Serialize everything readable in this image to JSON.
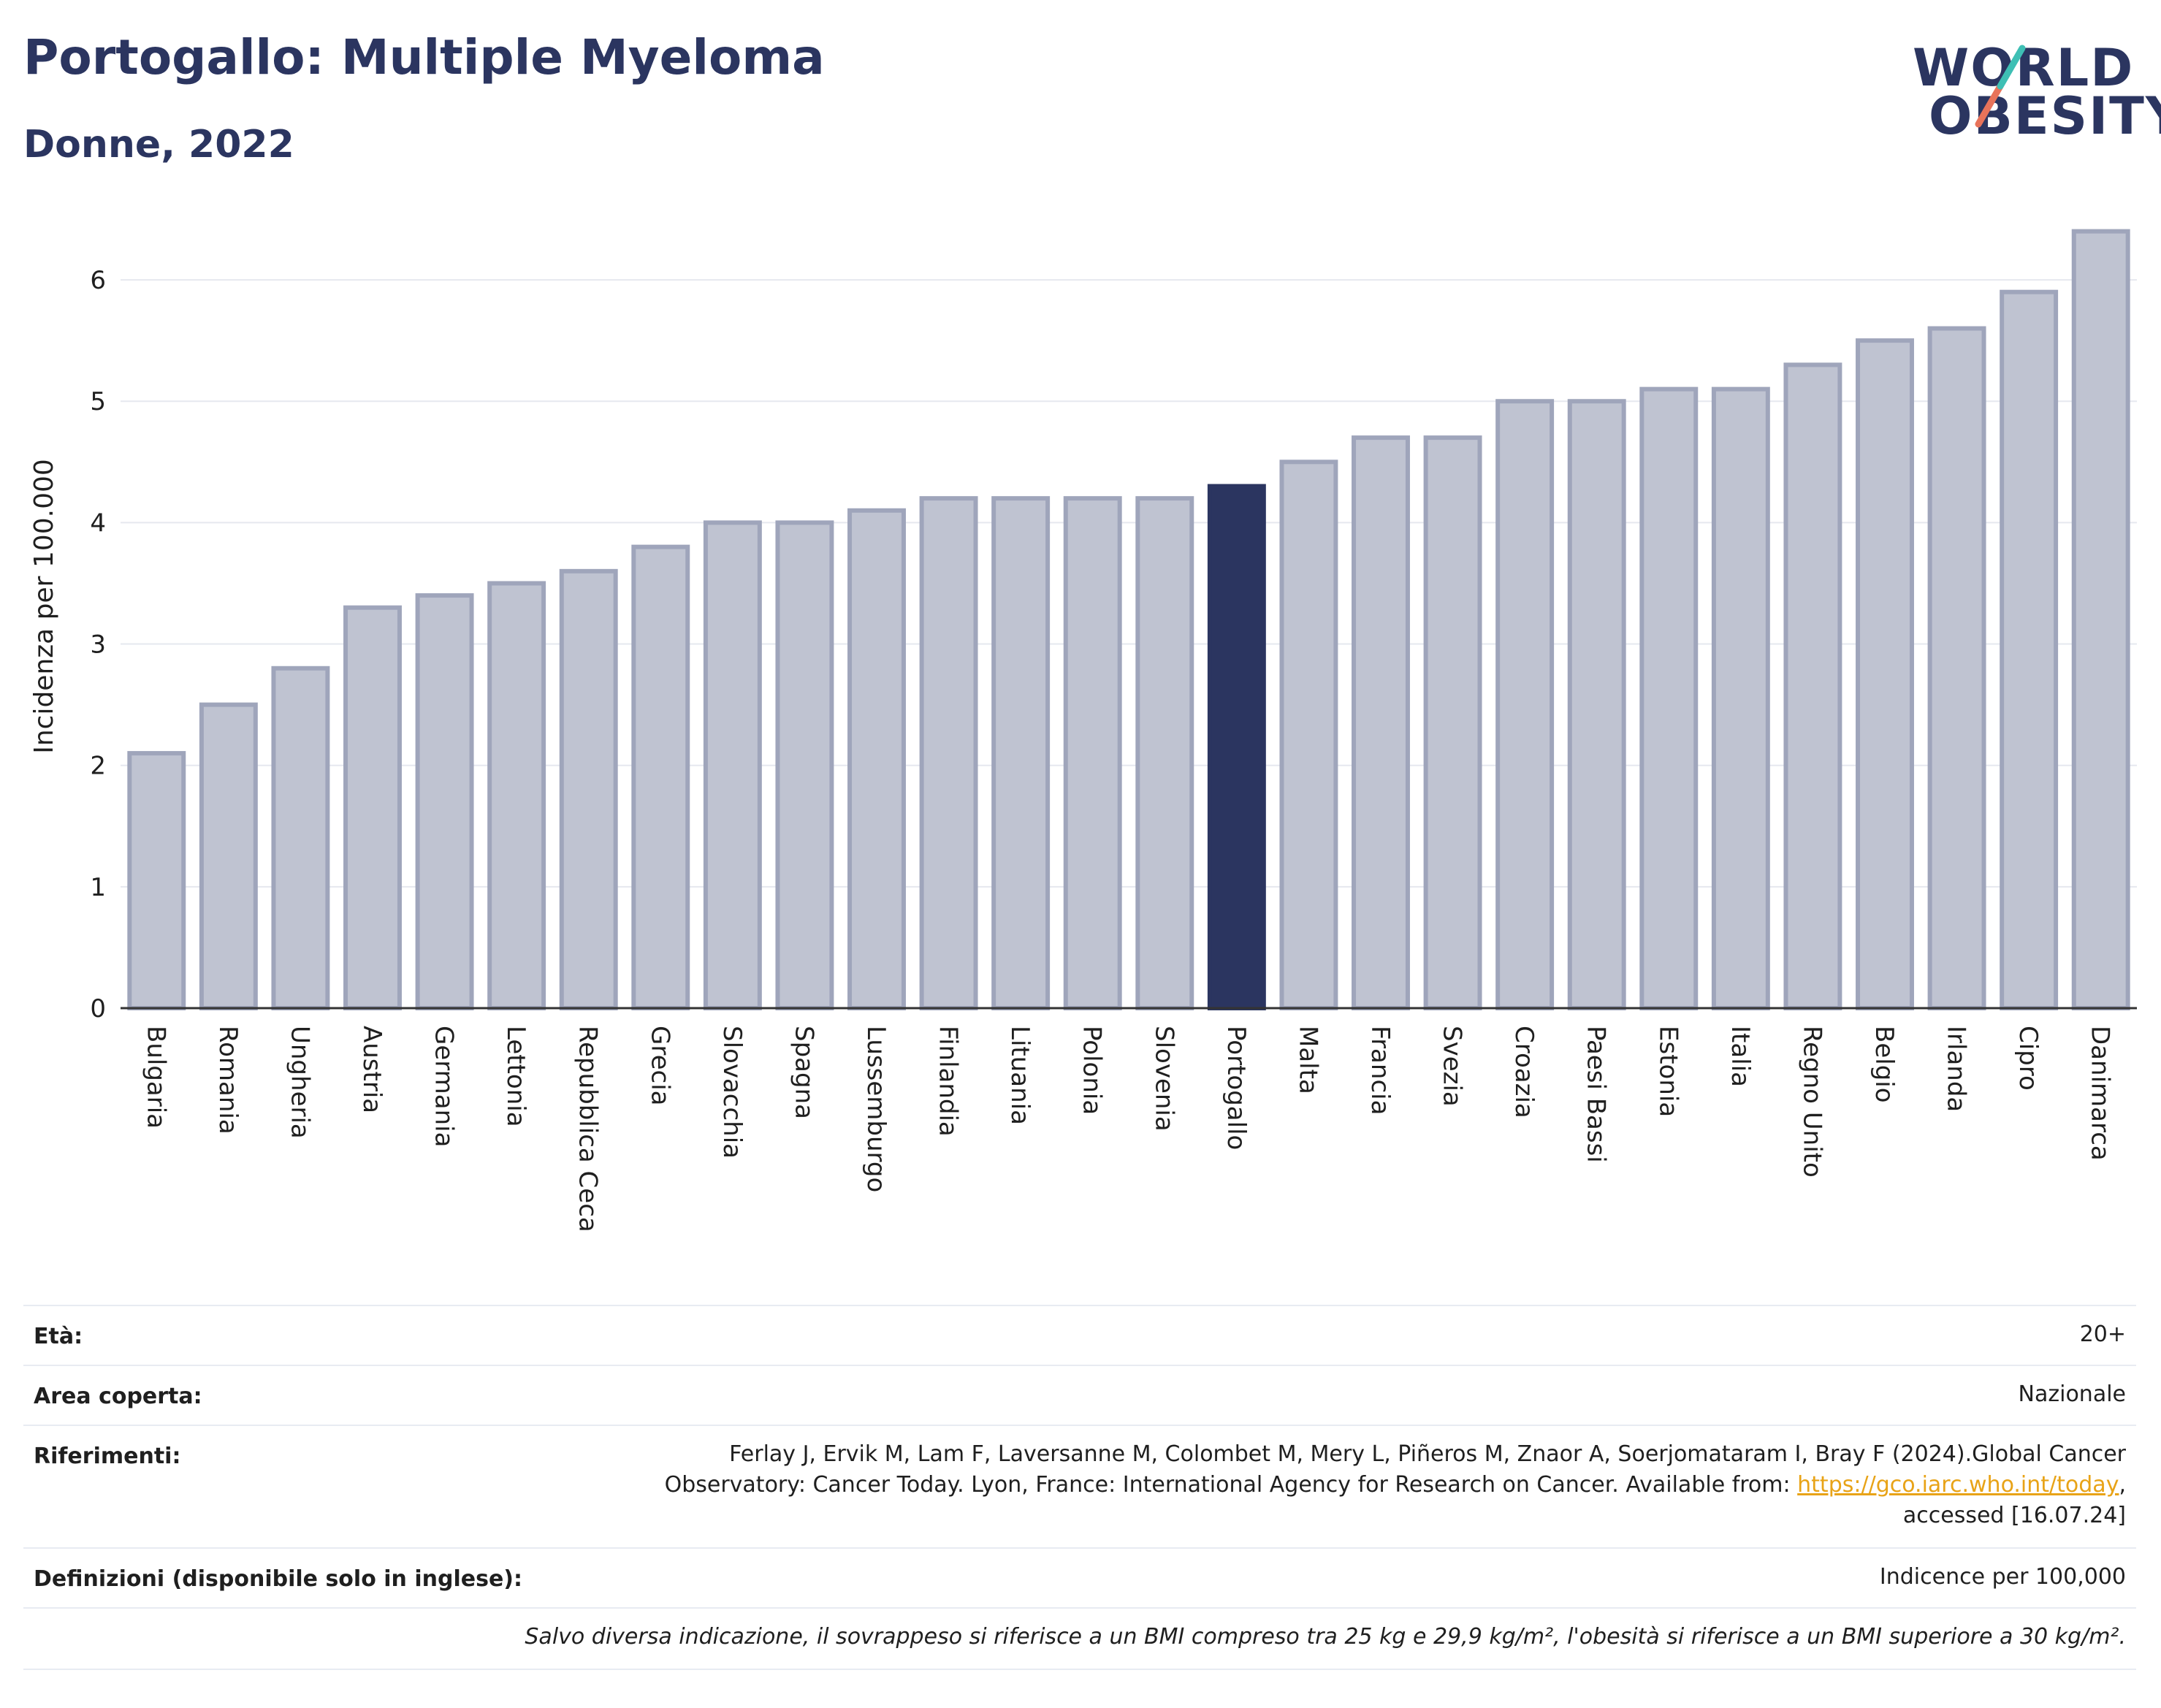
{
  "header": {
    "title": "Portogallo: Multiple Myeloma",
    "subtitle": "Donne, 2022"
  },
  "logo": {
    "line1": "WORLD",
    "line2": "OBESITY",
    "colors": {
      "text": "#2b3560",
      "slash_top": "#3ebfb4",
      "slash_bottom": "#e8735a"
    }
  },
  "colors": {
    "bar": "#bfc3d1",
    "bar_border": "#9fa5bb",
    "highlight": "#2b3560",
    "grid": "#e6e8ef",
    "axis": "#333333"
  },
  "chart_data": {
    "type": "bar",
    "title": "",
    "xlabel": "",
    "ylabel": "Incidenza per 100.000",
    "ylim": [
      0,
      6.5
    ],
    "yticks": [
      0,
      1,
      2,
      3,
      4,
      5,
      6
    ],
    "grid": true,
    "highlight": "Portogallo",
    "categories": [
      "Bulgaria",
      "Romania",
      "Ungheria",
      "Austria",
      "Germania",
      "Lettonia",
      "Repubblica Ceca",
      "Grecia",
      "Slovacchia",
      "Spagna",
      "Lussemburgo",
      "Finlandia",
      "Lituania",
      "Polonia",
      "Slovenia",
      "Portogallo",
      "Malta",
      "Francia",
      "Svezia",
      "Croazia",
      "Paesi Bassi",
      "Estonia",
      "Italia",
      "Regno Unito",
      "Belgio",
      "Irlanda",
      "Cipro",
      "Danimarca"
    ],
    "values": [
      2.1,
      2.5,
      2.8,
      3.3,
      3.4,
      3.5,
      3.6,
      3.8,
      4.0,
      4.0,
      4.1,
      4.2,
      4.2,
      4.2,
      4.2,
      4.3,
      4.5,
      4.7,
      4.7,
      5.0,
      5.0,
      5.1,
      5.1,
      5.3,
      5.5,
      5.6,
      5.9,
      6.4
    ]
  },
  "info": {
    "eta_label": "Età:",
    "eta_value": "20+",
    "area_label": "Area coperta:",
    "area_value": "Nazionale",
    "ref_label": "Riferimenti:",
    "ref_line1": "Ferlay J, Ervik M, Lam F, Laversanne M, Colombet M, Mery L, Piñeros M, Znaor A, Soerjomataram I, Bray F (2024).Global Cancer",
    "ref_line2": "Observatory: Cancer Today. Lyon, France: International Agency for Research on Cancer. Available from: ",
    "ref_link": "https://gco.iarc.who.int/today",
    "ref_line2_end": ",",
    "ref_line3": "accessed [16.07.24]",
    "def_label": "Definizioni (disponibile solo in inglese):",
    "def_value": "Indicence per 100,000",
    "note": "Salvo diversa indicazione, il sovrappeso si riferisce a un BMI compreso tra 25 kg e 29,9 kg/m², l'obesità si riferisce a un BMI superiore a 30 kg/m²."
  }
}
